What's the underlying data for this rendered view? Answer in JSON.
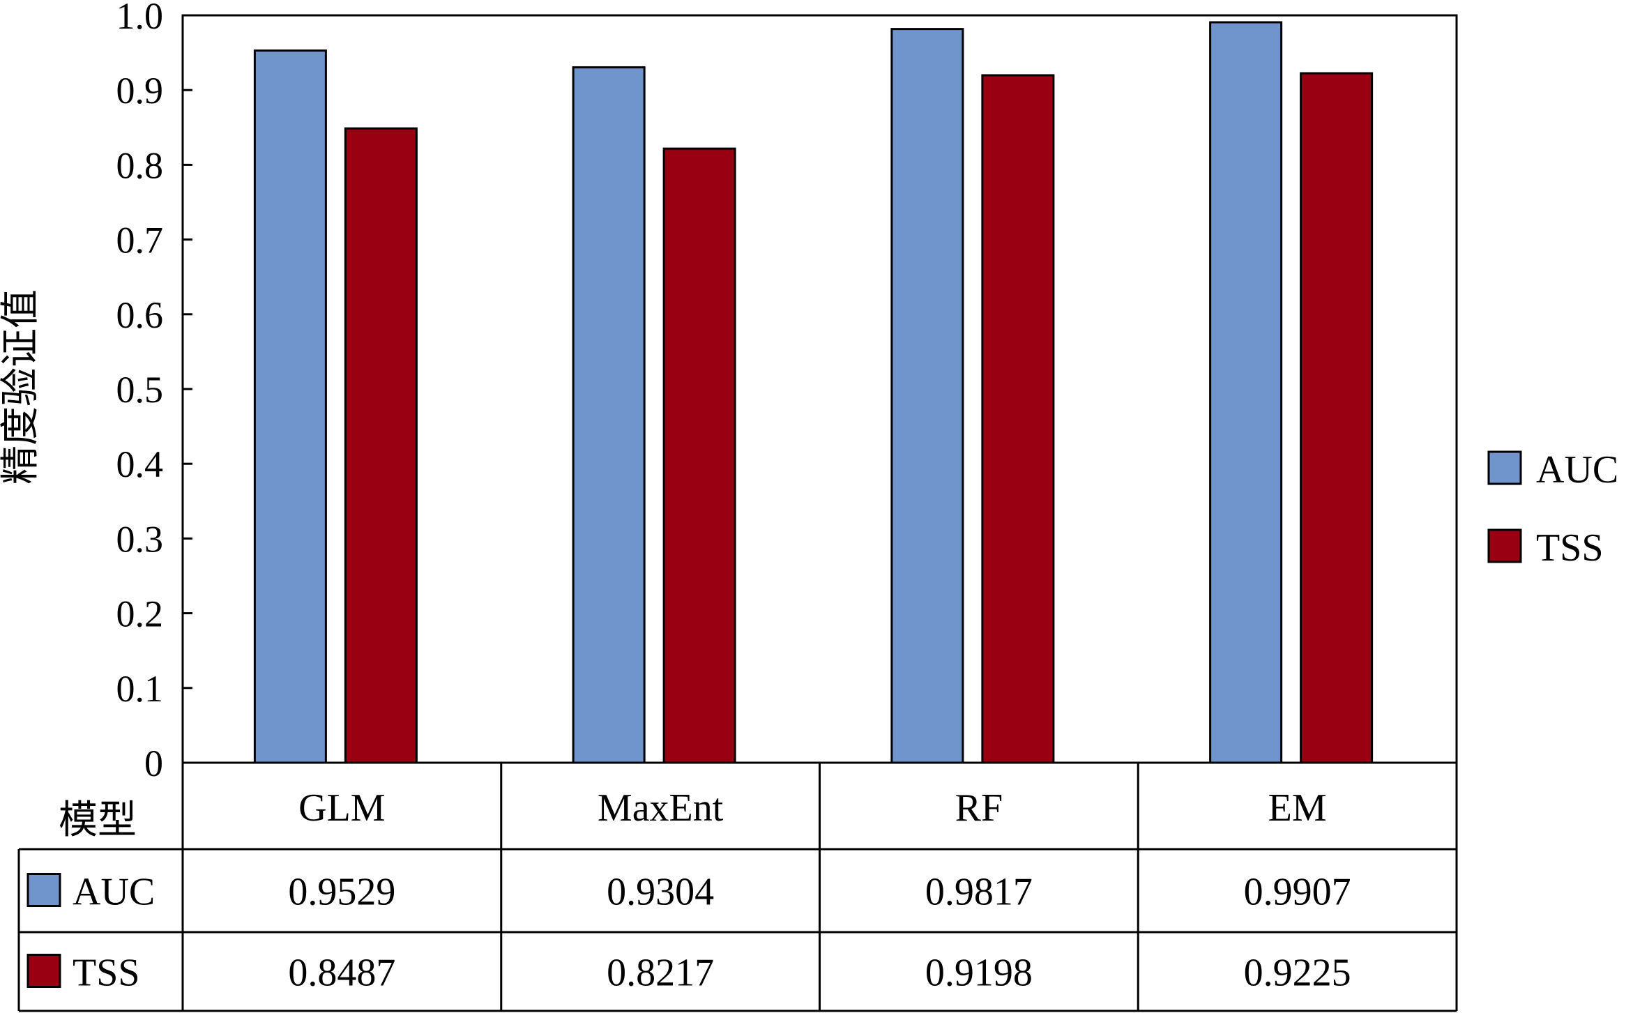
{
  "chart_data": {
    "type": "bar",
    "ylabel": "精度验证值",
    "xlabel": "模型",
    "categories": [
      "GLM",
      "MaxEnt",
      "RF",
      "EM"
    ],
    "ylim": [
      0,
      1.0
    ],
    "yticks": [
      "0",
      "0.1",
      "0.2",
      "0.3",
      "0.4",
      "0.5",
      "0.6",
      "0.7",
      "0.8",
      "0.9",
      "1.0"
    ],
    "grid": false,
    "legend_position": "right",
    "series": [
      {
        "name": "AUC",
        "color": "#7094cc",
        "values": [
          0.9529,
          0.9304,
          0.9817,
          0.9907
        ],
        "labels": [
          "0.9529",
          "0.9304",
          "0.9817",
          "0.9907"
        ]
      },
      {
        "name": "TSS",
        "color": "#990011",
        "values": [
          0.8487,
          0.8217,
          0.9198,
          0.9225
        ],
        "labels": [
          "0.8487",
          "0.8217",
          "0.9198",
          "0.9225"
        ]
      }
    ]
  }
}
